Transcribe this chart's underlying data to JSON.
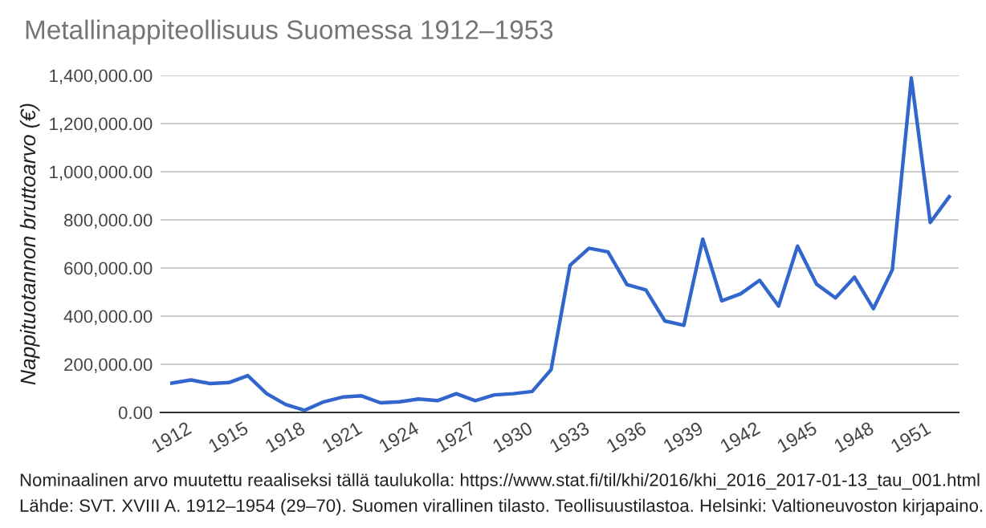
{
  "chart_data": {
    "type": "line",
    "title": "Metallinappiteollisuus Suomessa 1912–1953",
    "ylabel": "Nappituotannon bruttoarvo (€)",
    "x": [
      1912,
      1913,
      1914,
      1915,
      1916,
      1917,
      1918,
      1919,
      1920,
      1921,
      1922,
      1923,
      1924,
      1925,
      1926,
      1927,
      1928,
      1929,
      1930,
      1931,
      1932,
      1933,
      1934,
      1935,
      1936,
      1937,
      1938,
      1939,
      1940,
      1941,
      1942,
      1943,
      1944,
      1945,
      1946,
      1947,
      1948,
      1949,
      1950,
      1951,
      1952,
      1953
    ],
    "series": [
      {
        "color": "#3366cc",
        "values": [
          122000,
          135000,
          120000,
          124000,
          153000,
          78000,
          33000,
          9000,
          44000,
          64000,
          69000,
          40000,
          44000,
          56000,
          49000,
          78000,
          49000,
          73000,
          78000,
          87000,
          178000,
          611000,
          682000,
          667000,
          531000,
          509000,
          380000,
          362000,
          720000,
          464000,
          493000,
          549000,
          442000,
          691000,
          533000,
          476000,
          562000,
          431000,
          593000,
          1389000,
          789000,
          896000
        ]
      }
    ],
    "xlim": [
      1911.4,
      1953.5
    ],
    "xticks": [
      1912,
      1915,
      1918,
      1921,
      1924,
      1927,
      1930,
      1933,
      1936,
      1939,
      1942,
      1945,
      1948,
      1951
    ],
    "ylim": [
      0,
      1400000
    ],
    "yticks": [
      {
        "value": 0,
        "label": "0.00"
      },
      {
        "value": 200000,
        "label": "200,000.00"
      },
      {
        "value": 400000,
        "label": "400,000.00"
      },
      {
        "value": 600000,
        "label": "600,000.00"
      },
      {
        "value": 800000,
        "label": "800,000.00"
      },
      {
        "value": 1000000,
        "label": "1,000,000.00"
      },
      {
        "value": 1200000,
        "label": "1,200,000.00"
      },
      {
        "value": 1400000,
        "label": "1,400,000.00"
      }
    ],
    "grid": "y",
    "marker": "none",
    "line_style": "solid",
    "annotations": [
      "Nominaalinen arvo muutettu reaaliseksi tällä taulukolla: https://www.stat.fi/til/khi/2016/khi_2016_2017-01-13_tau_001.html",
      "Lähde: SVT. XVIII A. 1912–1954 (29–70). Suomen virallinen tilasto. Teollisuustilastoa. Helsinki: Valtioneuvoston kirjapaino."
    ]
  }
}
